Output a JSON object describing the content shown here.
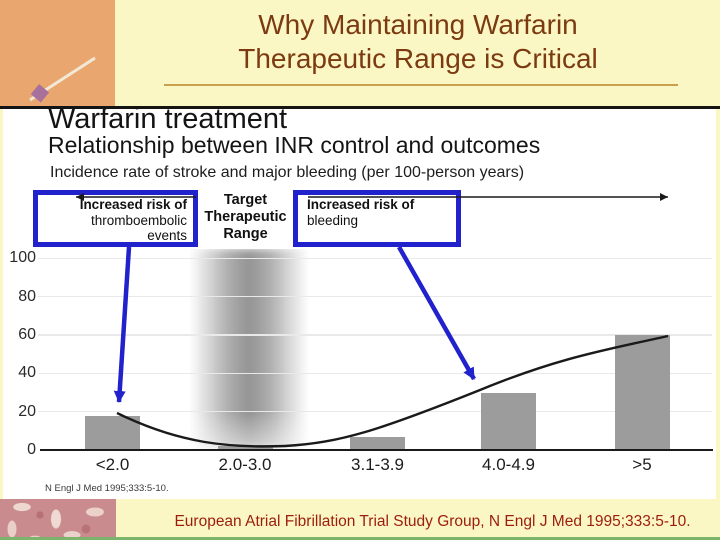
{
  "slide": {
    "title_line1": "Why Maintaining Warfarin",
    "title_line2": "Therapeutic Range is Critical",
    "footer": "European Atrial Fibrillation Trial Study Group, N Engl J Med 1995;333:5-10."
  },
  "chart": {
    "title": "Warfarin treatment",
    "subtitle": "Relationship between INR control and outcomes",
    "note": "Incidence rate of stroke and major bleeding (per 100-person years)",
    "citation": "N Engl J Med 1995;333:5-10.",
    "left_box": {
      "line1": "Increased risk of",
      "line2": "thromboembolic",
      "line3": "events"
    },
    "target_label": {
      "line1": "Target",
      "line2": "Therapeutic",
      "line3": "Range"
    },
    "right_box": {
      "line1": "Increased risk of",
      "line2": "bleeding"
    }
  },
  "chart_data": {
    "type": "bar",
    "categories": [
      "<2.0",
      "2.0-3.0",
      "3.1-3.9",
      "4.0-4.9",
      ">5"
    ],
    "values": [
      18,
      2,
      7,
      30,
      60
    ],
    "title": "Warfarin treatment",
    "subtitle": "Relationship between INR control and outcomes",
    "xlabel": "",
    "ylabel": "",
    "ylim": [
      0,
      100
    ],
    "yticks": [
      0,
      20,
      40,
      60,
      80,
      100
    ],
    "grid": true,
    "target_band_category": "2.0-3.0",
    "overlay_curve": "U-shaped trend line from ~18 at <2.0, minimum ~2 at 2.0-3.0, rising to ~60 at >5",
    "annotations": [
      "Increased risk of thromboembolic events (arrow to <2.0 bar)",
      "Target Therapeutic Range (gray band over 2.0-3.0)",
      "Increased risk of bleeding (arrow to 4.0-4.9 bar)"
    ]
  },
  "colors": {
    "page_bg": "#FBF7C5",
    "accent_blue": "#2222CC",
    "bar_gray": "#9C9C9C",
    "title_brown": "#7B3A10",
    "footer_red": "#9C1D0C",
    "orange": "#E9A76F",
    "pattern_rose": "#C98B8E",
    "pattern_cream": "#EDD7CE",
    "underline_tan": "#C9A14E",
    "strip_green": "#7DB46C"
  }
}
